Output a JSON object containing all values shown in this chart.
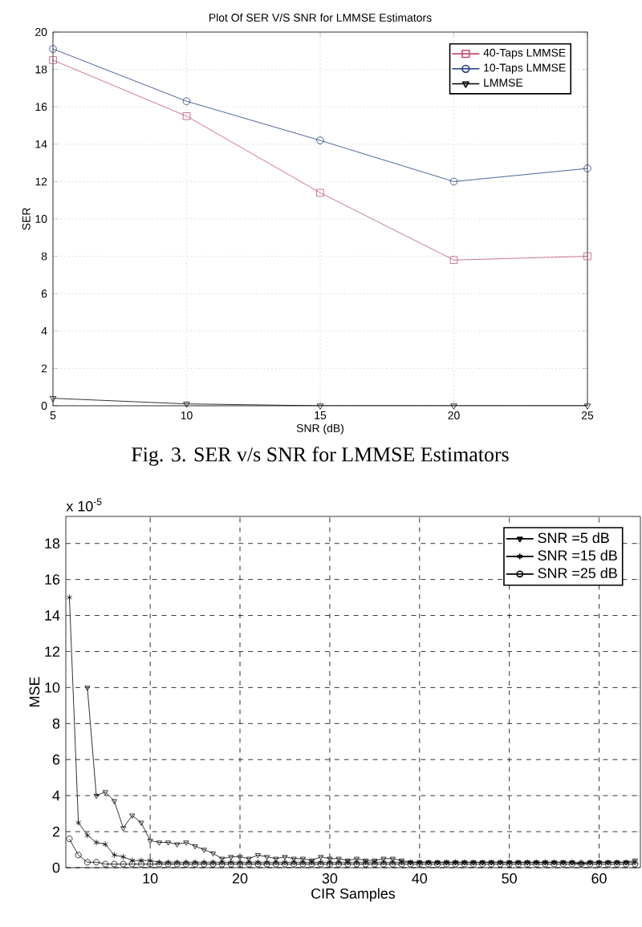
{
  "chart_data": [
    {
      "type": "line",
      "title": "Plot Of SER V/S SNR for LMMSE Estimators",
      "xlabel": "SNR  (dB)",
      "ylabel": "SER",
      "annotations": [
        "Fig. 3. SER v/s SNR for LMMSE Estimators"
      ],
      "x": [
        5,
        10,
        15,
        20,
        25
      ],
      "series": [
        {
          "name": "40-Taps LMMSE",
          "color": "#c0506e",
          "marker": "square",
          "values": [
            18.5,
            15.5,
            11.4,
            7.8,
            8.0
          ]
        },
        {
          "name": "10-Taps LMMSE",
          "color": "#1f3c7c",
          "marker": "circle",
          "values": [
            19.1,
            16.3,
            14.2,
            12.0,
            12.7
          ]
        },
        {
          "name": "LMMSE",
          "color": "#000000",
          "marker": "triangle",
          "values": [
            0.4,
            0.1,
            0,
            0,
            0
          ]
        }
      ],
      "xlim": [
        5,
        25
      ],
      "ylim": [
        0,
        20
      ],
      "xticks": [
        5,
        10,
        15,
        20,
        25
      ],
      "yticks": [
        0,
        2,
        4,
        6,
        8,
        10,
        12,
        14,
        16,
        18,
        20
      ],
      "grid": true,
      "legend": "top right"
    },
    {
      "type": "line",
      "xlabel": "CIR Samples",
      "ylabel": "MSE",
      "annotations": [
        "x 10$^{-5}$"
      ],
      "x": [
        1,
        2,
        3,
        4,
        5,
        6,
        7,
        8,
        9,
        10,
        11,
        12,
        13,
        14,
        15,
        16,
        17,
        18,
        19,
        20,
        21,
        22,
        23,
        24,
        25,
        26,
        27,
        28,
        29,
        30,
        31,
        32,
        33,
        34,
        35,
        36,
        37,
        38,
        39,
        40,
        41,
        42,
        43,
        44,
        45,
        46,
        47,
        48,
        49,
        50,
        51,
        52,
        53,
        54,
        55,
        56,
        57,
        58,
        59,
        60,
        61,
        62,
        63,
        64
      ],
      "series": [
        {
          "name": "SNR =5 dB",
          "color": "#000000",
          "marker": "triangle",
          "values": [
            null,
            null,
            10.0,
            4.0,
            4.2,
            3.7,
            2.2,
            2.9,
            2.5,
            1.5,
            1.4,
            1.4,
            1.3,
            1.4,
            1.2,
            1.0,
            0.8,
            0.5,
            0.6,
            0.6,
            0.5,
            0.7,
            0.6,
            0.5,
            0.6,
            0.5,
            0.5,
            0.4,
            0.6,
            0.5,
            0.5,
            0.4,
            0.5,
            0.4,
            0.4,
            0.5,
            0.5,
            0.4,
            0.3,
            0.3,
            0.3,
            0.3,
            0.3,
            0.3,
            0.3,
            0.3,
            0.3,
            0.3,
            0.3,
            0.3,
            0.3,
            0.3,
            0.3,
            0.3,
            0.3,
            0.3,
            0.3,
            0.2,
            0.3,
            0.3,
            0.3,
            0.3,
            0.3,
            0.4
          ]
        },
        {
          "name": "SNR =15 dB",
          "color": "#000000",
          "marker": "cross",
          "values": [
            15.0,
            2.5,
            1.8,
            1.4,
            1.3,
            0.7,
            0.6,
            0.4,
            0.4,
            0.4,
            0.3,
            0.3,
            0.3,
            0.3,
            0.3,
            0.3,
            0.3,
            0.3,
            0.3,
            0.3,
            0.3,
            0.3,
            0.3,
            0.3,
            0.3,
            0.3,
            0.3,
            0.3,
            0.3,
            0.3,
            0.3,
            0.3,
            0.3,
            0.3,
            0.3,
            0.3,
            0.3,
            0.3,
            0.3,
            0.3,
            0.3,
            0.3,
            0.3,
            0.3,
            0.3,
            0.3,
            0.3,
            0.3,
            0.3,
            0.3,
            0.3,
            0.3,
            0.3,
            0.3,
            0.3,
            0.3,
            0.3,
            0.3,
            0.3,
            0.3,
            0.3,
            0.3,
            0.3,
            0.3
          ]
        },
        {
          "name": "SNR =25 dB",
          "color": "#000000",
          "marker": "circle",
          "values": [
            1.6,
            0.7,
            0.3,
            0.3,
            0.2,
            0.2,
            0.2,
            0.2,
            0.2,
            0.2,
            0.2,
            0.2,
            0.2,
            0.2,
            0.2,
            0.2,
            0.2,
            0.2,
            0.2,
            0.2,
            0.2,
            0.2,
            0.2,
            0.2,
            0.2,
            0.2,
            0.2,
            0.2,
            0.2,
            0.2,
            0.2,
            0.2,
            0.2,
            0.2,
            0.2,
            0.2,
            0.2,
            0.2,
            0.2,
            0.2,
            0.2,
            0.2,
            0.2,
            0.2,
            0.2,
            0.2,
            0.2,
            0.2,
            0.2,
            0.2,
            0.2,
            0.2,
            0.2,
            0.2,
            0.2,
            0.2,
            0.2,
            0.2,
            0.2,
            0.2,
            0.2,
            0.2,
            0.2,
            0.2
          ]
        }
      ],
      "xlim": [
        0.6,
        64.6
      ],
      "ylim": [
        0,
        19.5
      ],
      "xticks": [
        10,
        20,
        30,
        40,
        50,
        60
      ],
      "yticks": [
        0,
        2,
        4,
        6,
        8,
        10,
        12,
        14,
        16,
        18
      ],
      "grid": true,
      "legend": "top right"
    }
  ]
}
